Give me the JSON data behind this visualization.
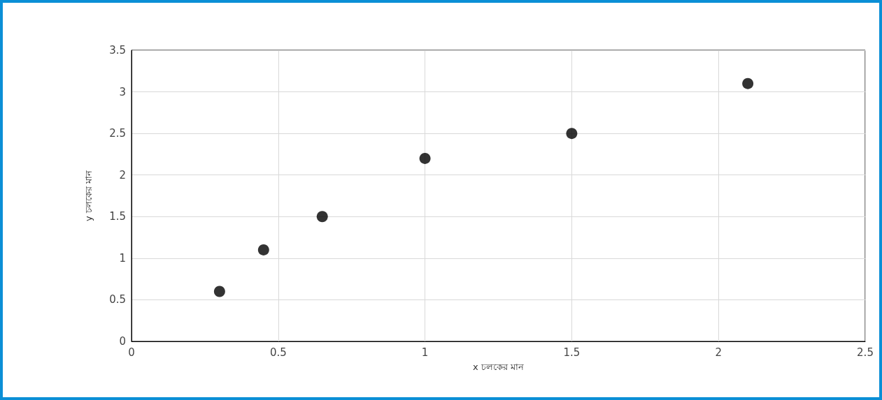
{
  "chart_data": {
    "type": "scatter",
    "xlabel": "x চলকের মান",
    "ylabel": "y চলকের মান",
    "x": [
      0.3,
      0.45,
      0.65,
      1,
      1.5,
      2.1
    ],
    "series": [
      {
        "color": "#000000",
        "values": [
          0.6,
          1.1,
          1.5,
          2.2,
          2.5,
          3.1
        ]
      }
    ],
    "xlim": [
      0,
      2.5
    ],
    "xticks": [
      0,
      0.5,
      1,
      1.5,
      2,
      2.5
    ],
    "ylim": [
      0,
      3.5
    ],
    "yticks": [
      0,
      0.5,
      1,
      1.5,
      2,
      2.5,
      3,
      3.5
    ],
    "grid": true,
    "marker": "circle"
  }
}
